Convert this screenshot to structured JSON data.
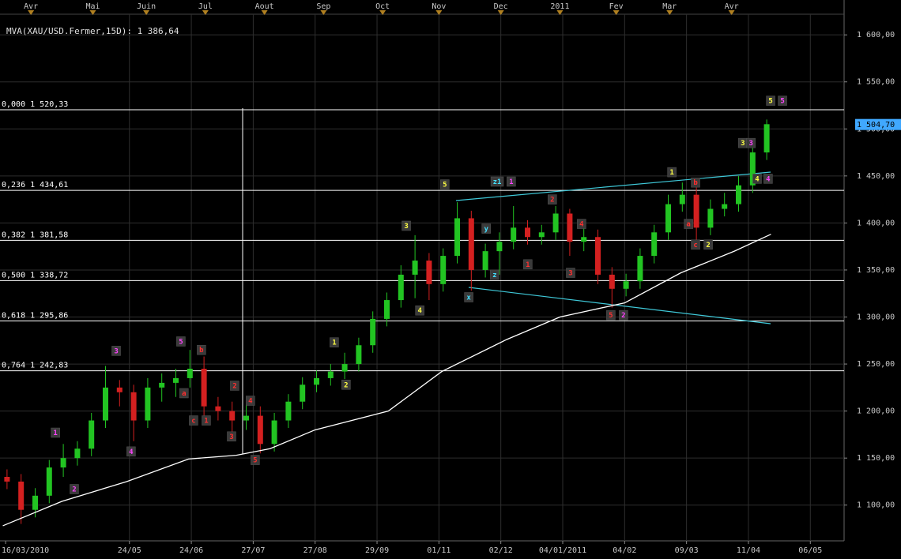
{
  "chart_data": {
    "type": "candlestick",
    "title": "MVA(XAU/USD.Fermer,15D): 1 386,64",
    "x": [
      2.5,
      7.5,
      12.5,
      17.5,
      22.5,
      27.5,
      32.5,
      37.5,
      42.5,
      47.5,
      52.5,
      57.5,
      62.5,
      67.5,
      72.5,
      77.5,
      82.5,
      87.5,
      92.5,
      97.5,
      102.5,
      107.5,
      112.5,
      117.5,
      122.5,
      127.5,
      132.5,
      137.5,
      142.5,
      147.5,
      152.5,
      157.5,
      162.5,
      167.5,
      172.5,
      177.5,
      182.5,
      187.5,
      192.5,
      197.5,
      202.5,
      207.5,
      212.5,
      217.5,
      222.5,
      227.5,
      232.5,
      237.5,
      242.5,
      247.5,
      252.5,
      257.5,
      262.5,
      267.5,
      272.5
    ],
    "open": [
      1130,
      1125,
      1095,
      1110,
      1140,
      1150,
      1160,
      1190,
      1225,
      1220,
      1190,
      1225,
      1230,
      1235,
      1245,
      1205,
      1200,
      1190,
      1195,
      1165,
      1190,
      1210,
      1228,
      1235,
      1242,
      1250,
      1270,
      1298,
      1318,
      1345,
      1360,
      1335,
      1365,
      1405,
      1350,
      1370,
      1380,
      1395,
      1385,
      1390,
      1410,
      1380,
      1385,
      1345,
      1330,
      1338,
      1365,
      1390,
      1420,
      1430,
      1395,
      1415,
      1420,
      1440,
      1475
    ],
    "high": [
      1138,
      1133,
      1118,
      1148,
      1165,
      1168,
      1198,
      1248,
      1233,
      1228,
      1235,
      1240,
      1245,
      1265,
      1258,
      1215,
      1210,
      1208,
      1205,
      1198,
      1218,
      1236,
      1243,
      1250,
      1262,
      1278,
      1306,
      1326,
      1355,
      1387,
      1368,
      1373,
      1422,
      1413,
      1378,
      1390,
      1418,
      1403,
      1398,
      1418,
      1415,
      1400,
      1393,
      1353,
      1346,
      1373,
      1398,
      1430,
      1443,
      1438,
      1425,
      1432,
      1450,
      1483,
      1510
    ],
    "low": [
      1117,
      1080,
      1087,
      1102,
      1130,
      1142,
      1152,
      1182,
      1205,
      1168,
      1182,
      1210,
      1215,
      1225,
      1195,
      1190,
      1178,
      1180,
      1155,
      1157,
      1182,
      1202,
      1220,
      1227,
      1234,
      1242,
      1262,
      1290,
      1310,
      1320,
      1318,
      1327,
      1357,
      1328,
      1342,
      1345,
      1372,
      1377,
      1377,
      1382,
      1365,
      1370,
      1335,
      1310,
      1322,
      1330,
      1357,
      1382,
      1412,
      1378,
      1387,
      1407,
      1412,
      1432,
      1467
    ],
    "close": [
      1125,
      1095,
      1110,
      1140,
      1150,
      1160,
      1190,
      1225,
      1220,
      1190,
      1225,
      1230,
      1235,
      1245,
      1205,
      1200,
      1190,
      1195,
      1165,
      1190,
      1210,
      1228,
      1235,
      1242,
      1250,
      1270,
      1298,
      1318,
      1345,
      1360,
      1335,
      1365,
      1405,
      1350,
      1370,
      1380,
      1395,
      1385,
      1390,
      1410,
      1380,
      1385,
      1345,
      1330,
      1338,
      1365,
      1390,
      1420,
      1430,
      1395,
      1415,
      1420,
      1440,
      1475,
      1505
    ],
    "up_color": "#22c422",
    "down_color": "#d42020",
    "xlim": [
      0,
      300
    ],
    "ylim": [
      1062,
      1627
    ],
    "grid": true,
    "xticks": [
      {
        "value": 2,
        "label": "16/03/2010"
      },
      {
        "value": 46,
        "label": "24/05"
      },
      {
        "value": 68,
        "label": "24/06"
      },
      {
        "value": 90,
        "label": "27/07"
      },
      {
        "value": 112,
        "label": "27/08"
      },
      {
        "value": 134,
        "label": "29/09"
      },
      {
        "value": 156,
        "label": "01/11"
      },
      {
        "value": 178,
        "label": "02/12"
      },
      {
        "value": 200,
        "label": "04/01/2011"
      },
      {
        "value": 222,
        "label": "04/02"
      },
      {
        "value": 244,
        "label": "09/03"
      },
      {
        "value": 266,
        "label": "11/04"
      },
      {
        "value": 288,
        "label": "06/05"
      }
    ],
    "top_xticks": [
      {
        "value": 11,
        "label": "Avr"
      },
      {
        "value": 33,
        "label": "Mai"
      },
      {
        "value": 52,
        "label": "Juin"
      },
      {
        "value": 73,
        "label": "Jul"
      },
      {
        "value": 94,
        "label": "Aout"
      },
      {
        "value": 115,
        "label": "Sep"
      },
      {
        "value": 136,
        "label": "Oct"
      },
      {
        "value": 156,
        "label": "Nov"
      },
      {
        "value": 178,
        "label": "Dec"
      },
      {
        "value": 199,
        "label": "2011"
      },
      {
        "value": 219,
        "label": "Fev"
      },
      {
        "value": 238,
        "label": "Mar"
      },
      {
        "value": 260,
        "label": "Avr"
      }
    ],
    "yticks": [
      {
        "value": 1100,
        "label": "1 100,00"
      },
      {
        "value": 1150,
        "label": "1 150,00"
      },
      {
        "value": 1200,
        "label": "1 200,00"
      },
      {
        "value": 1250,
        "label": "1 250,00"
      },
      {
        "value": 1300,
        "label": "1 300,00"
      },
      {
        "value": 1350,
        "label": "1 350,00"
      },
      {
        "value": 1400,
        "label": "1 400,00"
      },
      {
        "value": 1450,
        "label": "1 450,00"
      },
      {
        "value": 1500,
        "label": "1 500,00"
      },
      {
        "value": 1550,
        "label": "1 550,00"
      },
      {
        "value": 1600,
        "label": "1 600,00"
      }
    ],
    "moving_average": {
      "color": "#ffffff",
      "x": [
        1,
        22,
        45,
        67,
        84,
        96,
        112,
        138,
        157,
        180,
        199,
        222,
        242,
        261,
        274
      ],
      "values": [
        1078,
        1104,
        1125,
        1149,
        1153,
        1160,
        1180,
        1200,
        1242,
        1276,
        1300,
        1315,
        1347,
        1370,
        1388
      ]
    },
    "levels": [
      {
        "value": 1520.33,
        "label": "0,000 1 520,33"
      },
      {
        "value": 1434.61,
        "label": "0,236 1 434,61"
      },
      {
        "value": 1381.58,
        "label": "0,382 1 381,58"
      },
      {
        "value": 1338.72,
        "label": "0,500 1 338,72"
      },
      {
        "value": 1295.86,
        "label": "0,618 1 295,86"
      },
      {
        "value": 1242.83,
        "label": "0,764 1 242,83"
      }
    ],
    "last_price": {
      "value": 1504.7,
      "label": "1 504,70",
      "color": "#40a8ff"
    },
    "annotations": [
      {
        "text": "1",
        "x": 19.7,
        "y": 1177,
        "color": "#ff44ff"
      },
      {
        "text": "2",
        "x": 26.4,
        "y": 1117,
        "color": "#ff44ff"
      },
      {
        "text": "3",
        "x": 41.3,
        "y": 1264,
        "color": "#ff44ff"
      },
      {
        "text": "4",
        "x": 46.6,
        "y": 1157,
        "color": "#ff44ff"
      },
      {
        "text": "5",
        "x": 64.3,
        "y": 1274,
        "color": "#ff44ff"
      },
      {
        "text": "b",
        "x": 71.6,
        "y": 1265,
        "color": "#ff3030"
      },
      {
        "text": "a",
        "x": 65.4,
        "y": 1219,
        "color": "#ff3030"
      },
      {
        "text": "c",
        "x": 68.8,
        "y": 1190,
        "color": "#ff3030"
      },
      {
        "text": "1",
        "x": 73.3,
        "y": 1190,
        "color": "#ff3030"
      },
      {
        "text": "2",
        "x": 83.4,
        "y": 1227,
        "color": "#ff3030"
      },
      {
        "text": "3",
        "x": 82.3,
        "y": 1173,
        "color": "#ff3030"
      },
      {
        "text": "4",
        "x": 89,
        "y": 1211,
        "color": "#ff3030"
      },
      {
        "text": "5",
        "x": 90.7,
        "y": 1148,
        "color": "#ff3030"
      },
      {
        "text": "1",
        "x": 118.8,
        "y": 1273,
        "color": "#ffff44"
      },
      {
        "text": "2",
        "x": 123,
        "y": 1228,
        "color": "#ffff44"
      },
      {
        "text": "3",
        "x": 144.4,
        "y": 1397,
        "color": "#ffff44"
      },
      {
        "text": "4",
        "x": 149.2,
        "y": 1307,
        "color": "#ffff44"
      },
      {
        "text": "5",
        "x": 158.1,
        "y": 1441,
        "color": "#ffff44"
      },
      {
        "text": "x",
        "x": 166.6,
        "y": 1321,
        "color": "#44e0ff"
      },
      {
        "text": "y",
        "x": 172.8,
        "y": 1394,
        "color": "#44e0ff"
      },
      {
        "text": "z",
        "x": 175.8,
        "y": 1345,
        "color": "#44e0ff"
      },
      {
        "text": "z1",
        "x": 176.7,
        "y": 1444,
        "color": "#44e0ff"
      },
      {
        "text": "1",
        "x": 181.7,
        "y": 1444,
        "color": "#ff44ff"
      },
      {
        "text": "1",
        "x": 187.6,
        "y": 1356,
        "color": "#ff3030"
      },
      {
        "text": "2",
        "x": 196.3,
        "y": 1425,
        "color": "#ff3030"
      },
      {
        "text": "3",
        "x": 202.8,
        "y": 1347,
        "color": "#ff3030"
      },
      {
        "text": "4",
        "x": 206.7,
        "y": 1399,
        "color": "#ff3030"
      },
      {
        "text": "5",
        "x": 217.1,
        "y": 1302,
        "color": "#ff3030"
      },
      {
        "text": "2",
        "x": 221.6,
        "y": 1302,
        "color": "#ff44ff"
      },
      {
        "text": "1",
        "x": 238.8,
        "y": 1454,
        "color": "#ffff44"
      },
      {
        "text": "b",
        "x": 247.2,
        "y": 1443,
        "color": "#ff3030"
      },
      {
        "text": "a",
        "x": 244.7,
        "y": 1399,
        "color": "#ff3030"
      },
      {
        "text": "c",
        "x": 247.2,
        "y": 1377,
        "color": "#ff3030"
      },
      {
        "text": "2",
        "x": 251.7,
        "y": 1377,
        "color": "#ffff44"
      },
      {
        "text": "3",
        "x": 264,
        "y": 1485,
        "color": "#ffff44"
      },
      {
        "text": "3",
        "x": 266.9,
        "y": 1485,
        "color": "#ff44ff"
      },
      {
        "text": "4",
        "x": 269.1,
        "y": 1447,
        "color": "#ffff44"
      },
      {
        "text": "4",
        "x": 273,
        "y": 1447,
        "color": "#ff44ff"
      },
      {
        "text": "5",
        "x": 273.9,
        "y": 1530,
        "color": "#ffff44"
      },
      {
        "text": "5",
        "x": 278.1,
        "y": 1530,
        "color": "#ff44ff"
      }
    ]
  }
}
